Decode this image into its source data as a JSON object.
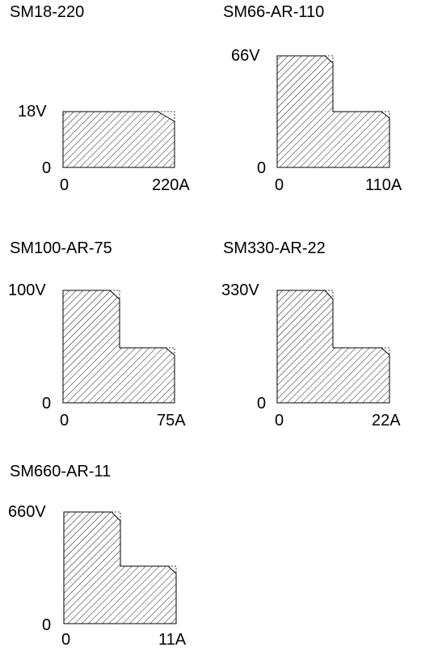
{
  "panels": [
    {
      "model": "SM18-220",
      "voltage_label": "18V",
      "current_label": "220A",
      "origin_x": "0",
      "origin_y": "0"
    },
    {
      "model": "SM66-AR-110",
      "voltage_label": "66V",
      "current_label": "110A",
      "origin_x": "0",
      "origin_y": "0"
    },
    {
      "model": "SM100-AR-75",
      "voltage_label": "100V",
      "current_label": "75A",
      "origin_x": "0",
      "origin_y": "0"
    },
    {
      "model": "SM330-AR-22",
      "voltage_label": "330V",
      "current_label": "22A",
      "origin_x": "0",
      "origin_y": "0"
    },
    {
      "model": "SM660-AR-11",
      "voltage_label": "660V",
      "current_label": "11A",
      "origin_x": "0",
      "origin_y": "0"
    }
  ]
}
